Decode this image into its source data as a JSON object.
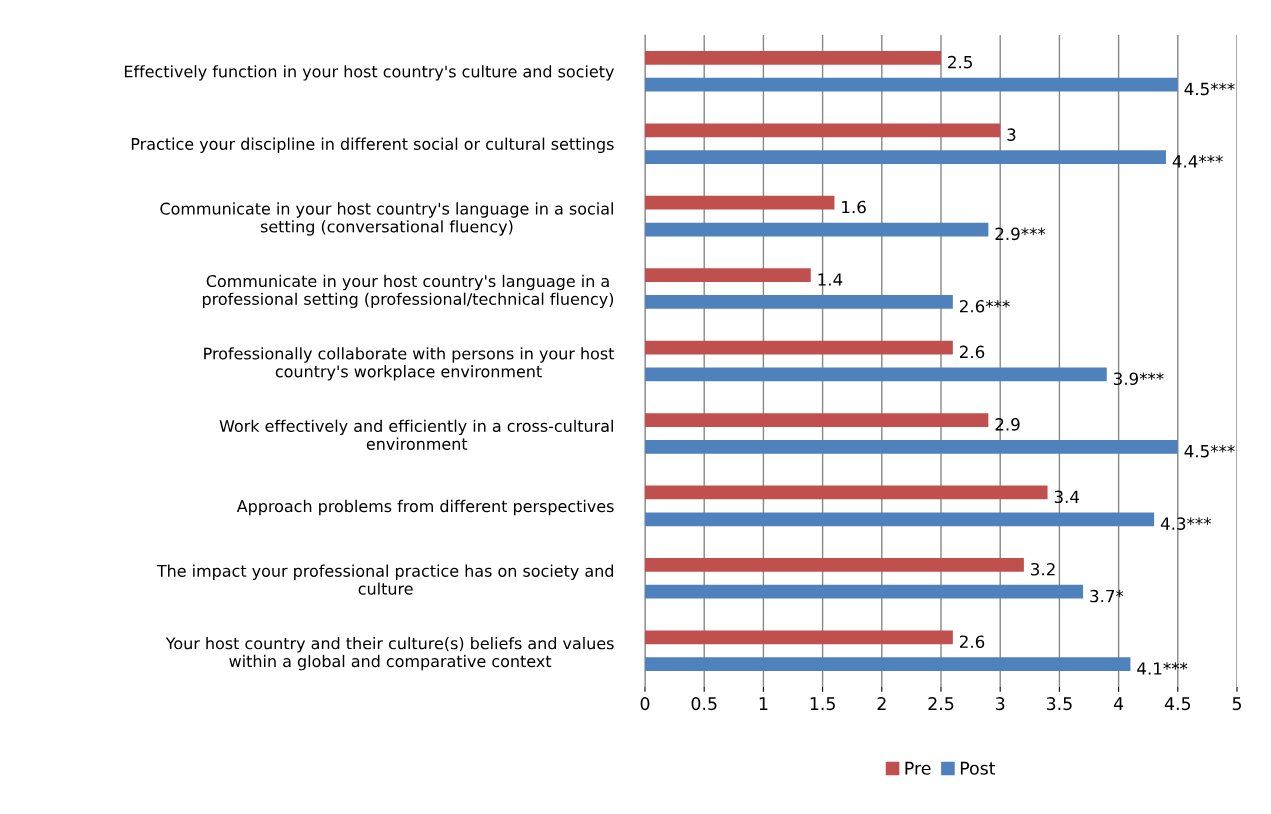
{
  "chart_data": {
    "type": "bar",
    "orientation": "horizontal",
    "categories": [
      "Effectively function in your host country's culture and society",
      "Practice your discipline in different social or cultural settings",
      "Communicate in your host country's language in a social\nsetting (conversational fluency)",
      "Communicate in your host country's language in a\nprofessional setting (professional/technical fluency)",
      "Professionally collaborate with persons in your host\ncountry's workplace environment",
      "Work effectively and efficiently in a cross-cultural\nenvironment",
      "Approach problems from different perspectives",
      "The impact your professional practice has on society and\nculture",
      "Your host country and their culture(s) beliefs and values\nwithin a global and comparative context"
    ],
    "series": [
      {
        "name": "Pre",
        "color": "#c0504d",
        "values": [
          2.5,
          3,
          1.6,
          1.4,
          2.6,
          2.9,
          3.4,
          3.2,
          2.6
        ],
        "value_labels": [
          "2.5",
          "3",
          "1.6",
          "1.4",
          "2.6",
          "2.9",
          "3.4",
          "3.2",
          "2.6"
        ]
      },
      {
        "name": "Post",
        "color": "#4f81bd",
        "values": [
          4.5,
          4.4,
          2.9,
          2.6,
          3.9,
          4.5,
          4.3,
          3.7,
          4.1
        ],
        "value_labels": [
          "4.5***",
          "4.4***",
          "2.9***",
          "2.6***",
          "3.9***",
          "4.5***",
          "4.3***",
          "3.7*",
          "4.1***"
        ]
      }
    ],
    "xlim": [
      0,
      5
    ],
    "xticks": [
      0,
      0.5,
      1,
      1.5,
      2,
      2.5,
      3,
      3.5,
      4,
      4.5,
      5
    ],
    "grid": "x",
    "legend": "bottom"
  }
}
